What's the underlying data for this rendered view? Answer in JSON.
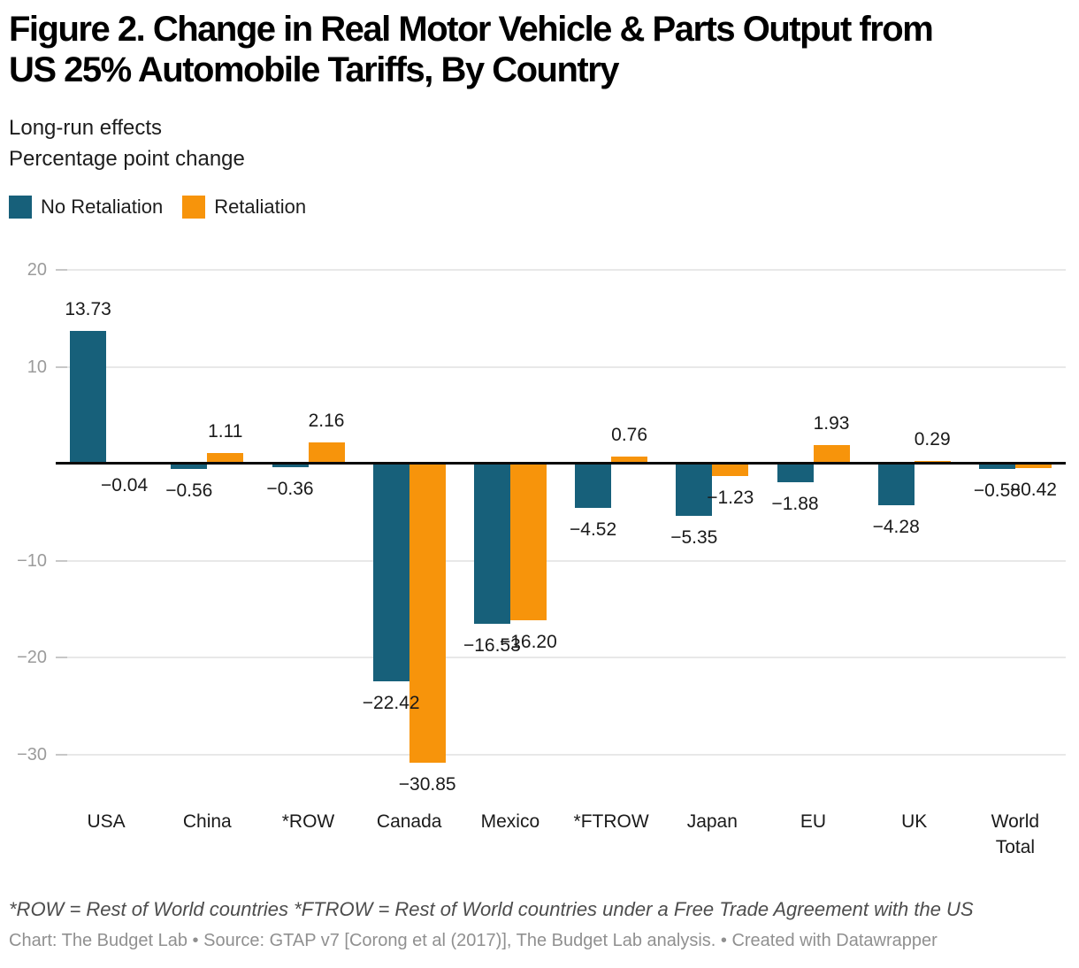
{
  "header": {
    "title": "Figure 2. Change in Real Motor Vehicle & Parts Output from US 25% Automobile Tariffs, By Country",
    "title_lines": [
      "Figure 2. Change in Real Motor Vehicle & Parts Output from",
      "US 25% Automobile Tariffs, By Country"
    ],
    "subtitle_lines": [
      "Long-run effects",
      "Percentage point change"
    ]
  },
  "chart_data": {
    "type": "bar",
    "title": "Figure 2. Change in Real Motor Vehicle & Parts Output from US 25% Automobile Tariffs, By Country",
    "subtitle": "Long-run effects. Percentage point change",
    "categories": [
      "USA",
      "China",
      "*ROW",
      "Canada",
      "Mexico",
      "*FTROW",
      "Japan",
      "EU",
      "UK",
      "World\nTotal"
    ],
    "series": [
      {
        "name": "No Retaliation",
        "color": "#17607a",
        "values": [
          13.73,
          -0.56,
          -0.36,
          -22.42,
          -16.53,
          -4.52,
          -5.35,
          -1.88,
          -4.28,
          -0.58
        ]
      },
      {
        "name": "Retaliation",
        "color": "#f7940b",
        "values": [
          -0.04,
          1.11,
          2.16,
          -30.85,
          -16.2,
          0.76,
          -1.23,
          1.93,
          0.29,
          -0.42
        ]
      }
    ],
    "y_ticks": [
      20,
      10,
      -10,
      -20,
      -30
    ],
    "ylim": [
      -32.5,
      20
    ],
    "grid": true,
    "value_labels": true,
    "value_label_decimals": 2,
    "legend_position": "top-left",
    "xlabel": "",
    "ylabel": "Percentage point change"
  },
  "footer": {
    "footnote": "*ROW = Rest of World countries *FTROW = Rest of World countries under a Free Trade Agreement with the US",
    "credit": "Chart: The Budget Lab • Source: GTAP v7 [Corong et al (2017)], The Budget Lab analysis. • Created with Datawrapper"
  }
}
